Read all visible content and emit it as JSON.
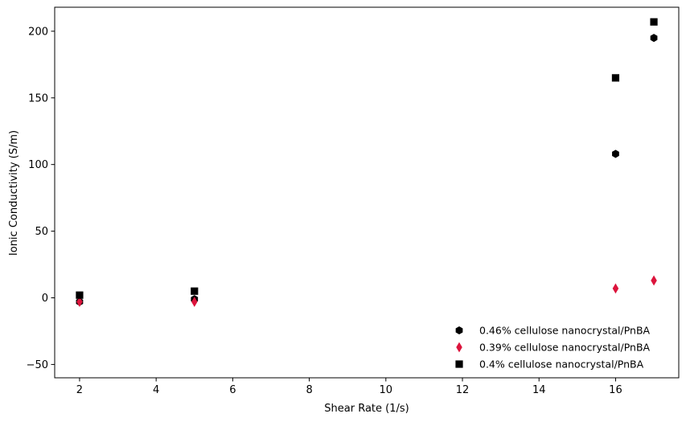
{
  "chart_data": {
    "type": "scatter",
    "xlabel": "Shear Rate (1/s)",
    "ylabel": "Ionic Conductivity (S/m)",
    "xlim": [
      1.35,
      17.65
    ],
    "ylim": [
      -60,
      218
    ],
    "xticks": [
      2,
      4,
      6,
      8,
      10,
      12,
      14,
      16
    ],
    "yticks": [
      -50,
      0,
      50,
      100,
      150,
      200
    ],
    "xtick_labels": [
      "2",
      "4",
      "6",
      "8",
      "10",
      "12",
      "14",
      "16"
    ],
    "ytick_labels": [
      "−50",
      "0",
      "50",
      "100",
      "150",
      "200"
    ],
    "grid": false,
    "legend_position": "lower-right",
    "series": [
      {
        "name": "0.46% cellulose nanocrystal/PnBA",
        "marker": "hexagon",
        "color": "#000000",
        "points": [
          {
            "x": 2,
            "y": -3
          },
          {
            "x": 5,
            "y": -1
          },
          {
            "x": 16,
            "y": 108
          },
          {
            "x": 17,
            "y": 195
          }
        ]
      },
      {
        "name": "0.39% cellulose nanocrystal/PnBA",
        "marker": "thin-diamond",
        "color": "#dc143c",
        "points": [
          {
            "x": 2,
            "y": -3
          },
          {
            "x": 5,
            "y": -3
          },
          {
            "x": 16,
            "y": 7
          },
          {
            "x": 17,
            "y": 13
          }
        ]
      },
      {
        "name": "0.4% cellulose nanocrystal/PnBA",
        "marker": "square",
        "color": "#000000",
        "points": [
          {
            "x": 2,
            "y": 2
          },
          {
            "x": 5,
            "y": 5
          },
          {
            "x": 16,
            "y": 165
          },
          {
            "x": 17,
            "y": 207
          }
        ]
      }
    ]
  }
}
